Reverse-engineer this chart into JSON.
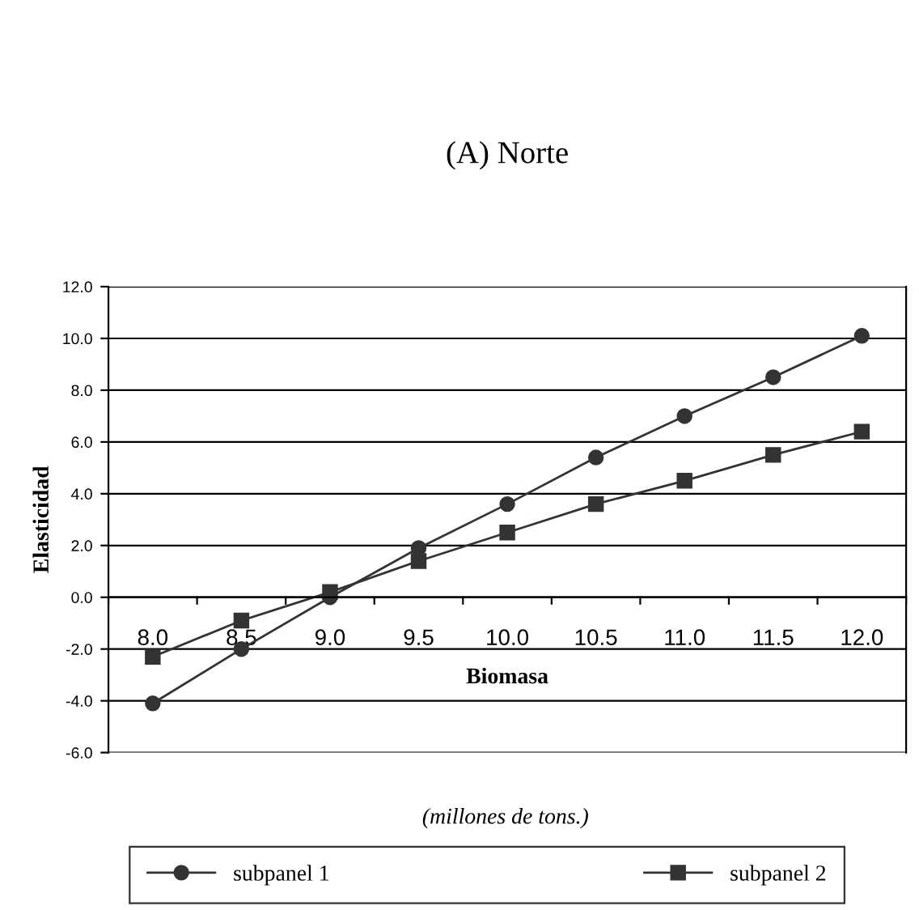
{
  "chart_data": {
    "type": "line",
    "title": "(A) Norte",
    "xlabel": "Biomasa",
    "ylabel": "Elasticidad",
    "annotations": [
      "(millones de tons.)"
    ],
    "categories": [
      "8.0",
      "8.5",
      "9.0",
      "9.5",
      "10.0",
      "10.5",
      "11.0",
      "11.5",
      "12.0"
    ],
    "series": [
      {
        "name": "subpanel 1",
        "color": "#333333",
        "marker": "circle",
        "values": [
          -4.1,
          -2.0,
          0.0,
          1.9,
          3.6,
          5.4,
          7.0,
          8.5,
          10.1
        ]
      },
      {
        "name": "subpanel 2",
        "color": "#333333",
        "marker": "square",
        "values": [
          -2.3,
          -0.9,
          0.2,
          1.4,
          2.5,
          3.6,
          4.5,
          5.5,
          6.4
        ]
      }
    ],
    "ylim": [
      -6,
      12
    ],
    "yticks": [
      {
        "value": -6,
        "label": "-6.0"
      },
      {
        "value": -4,
        "label": "-4.0"
      },
      {
        "value": -2,
        "label": "-2.0"
      },
      {
        "value": 0,
        "label": "0.0"
      },
      {
        "value": 2,
        "label": "2.0"
      },
      {
        "value": 4,
        "label": "4.0"
      },
      {
        "value": 6,
        "label": "6.0"
      },
      {
        "value": 8,
        "label": "8.0"
      },
      {
        "value": 10,
        "label": "10.0"
      },
      {
        "value": 12,
        "label": "12.0"
      }
    ],
    "grid": "y",
    "legend": "bottom",
    "line_style": "solid"
  }
}
